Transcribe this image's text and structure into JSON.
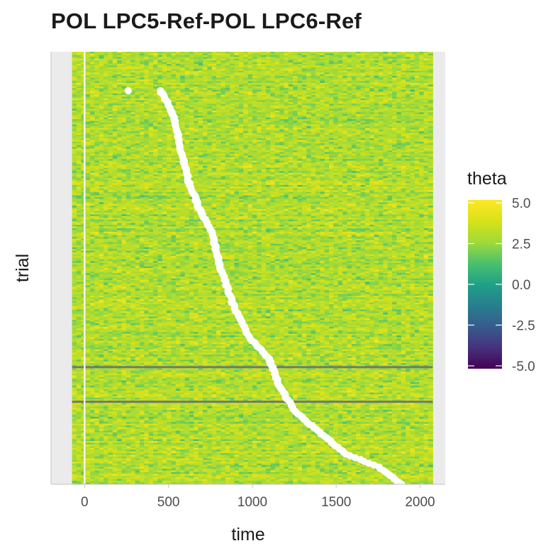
{
  "chart_data": {
    "type": "heatmap",
    "title": "POL LPC5-Ref-POL LPC6-Ref",
    "xlabel": "time",
    "ylabel": "trial",
    "xlim": [
      -200,
      2150
    ],
    "heatmap_x_range": [
      -75,
      2075
    ],
    "x_ticks": [
      0,
      500,
      1000,
      1500,
      2000
    ],
    "x_tick_labels": [
      "0",
      "500",
      "1000",
      "1500",
      "2000"
    ],
    "y_ticks_shown": false,
    "trials": 250,
    "vertical_reference_line": 0,
    "colorbar": {
      "title": "theta",
      "palette": "viridis",
      "limits": [
        -5.0,
        5.0
      ],
      "ticks": [
        5.0,
        2.5,
        0.0,
        -2.5,
        -5.0
      ],
      "tick_labels": [
        "5.0",
        "2.5",
        "0.0",
        "-2.5",
        "-5.0"
      ]
    },
    "grey_rows_fraction_from_top": [
      0.73,
      0.81
    ],
    "response_markers": {
      "color": "#ffffff",
      "points": [
        {
          "time": 260,
          "trial_fraction": 0.09
        },
        {
          "time": 450,
          "trial_fraction": 0.09
        },
        {
          "time": 500,
          "trial_fraction": 0.12
        },
        {
          "time": 540,
          "trial_fraction": 0.16
        },
        {
          "time": 570,
          "trial_fraction": 0.22
        },
        {
          "time": 620,
          "trial_fraction": 0.3
        },
        {
          "time": 680,
          "trial_fraction": 0.36
        },
        {
          "time": 760,
          "trial_fraction": 0.42
        },
        {
          "time": 810,
          "trial_fraction": 0.5
        },
        {
          "time": 880,
          "trial_fraction": 0.58
        },
        {
          "time": 980,
          "trial_fraction": 0.66
        },
        {
          "time": 1100,
          "trial_fraction": 0.71
        },
        {
          "time": 1160,
          "trial_fraction": 0.77
        },
        {
          "time": 1250,
          "trial_fraction": 0.83
        },
        {
          "time": 1400,
          "trial_fraction": 0.88
        },
        {
          "time": 1560,
          "trial_fraction": 0.93
        },
        {
          "time": 1750,
          "trial_fraction": 0.96
        },
        {
          "time": 1890,
          "trial_fraction": 1.0
        }
      ]
    }
  }
}
